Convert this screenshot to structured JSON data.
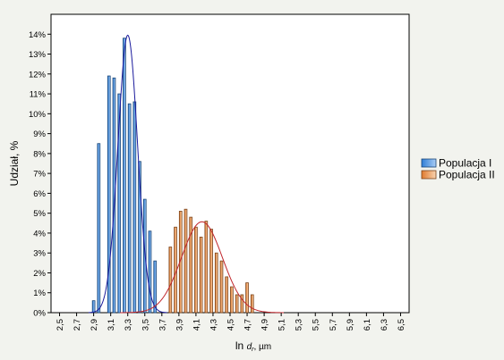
{
  "chart_data": {
    "type": "bar",
    "title": "",
    "xlabel": "ln d_r, µm",
    "xlabel_main": "ln ",
    "xlabel_var": "d",
    "xlabel_sub": "r",
    "xlabel_unit": ", µm",
    "ylabel": "Udział, %",
    "x_ticks": [
      "2,5",
      "2,7",
      "2,9",
      "3,1",
      "3,3",
      "3,5",
      "3,7",
      "3,9",
      "4,1",
      "4,3",
      "4,5",
      "4,7",
      "4,9",
      "5,1",
      "5,3",
      "5,5",
      "5,7",
      "5,9",
      "6,1",
      "6,3",
      "6,5"
    ],
    "y_ticks": [
      "0%",
      "1%",
      "2%",
      "3%",
      "4%",
      "5%",
      "6%",
      "7%",
      "8%",
      "9%",
      "10%",
      "11%",
      "12%",
      "13%",
      "14%"
    ],
    "xlim": [
      2.4,
      6.6
    ],
    "ylim": [
      0,
      15
    ],
    "grid": false,
    "legend_position": "right",
    "bar_width": 0.03,
    "series": [
      {
        "name": "Populacja I",
        "color": "#2e7dd6",
        "fill_light": "#aacdf5",
        "curve_color": "#1a1a9c",
        "curve_mean": 3.3,
        "curve_sd": 0.115,
        "curve_peak": 13.95,
        "x": [
          2.9,
          2.96,
          3.02,
          3.08,
          3.14,
          3.2,
          3.26,
          3.32,
          3.38,
          3.44,
          3.5,
          3.56,
          3.62
        ],
        "values": [
          0.6,
          8.5,
          0.0,
          11.9,
          11.8,
          11.0,
          13.8,
          10.5,
          10.6,
          7.6,
          5.7,
          4.1,
          2.6
        ]
      },
      {
        "name": "Populacja II",
        "color": "#e07a2e",
        "fill_light": "#f9d4b0",
        "curve_color": "#c0262c",
        "curve_mean": 4.17,
        "curve_sd": 0.24,
        "curve_peak": 4.57,
        "x": [
          3.8,
          3.86,
          3.92,
          3.98,
          4.04,
          4.1,
          4.16,
          4.22,
          4.28,
          4.34,
          4.4,
          4.46,
          4.52,
          4.58,
          4.64,
          4.7,
          4.76
        ],
        "values": [
          3.3,
          4.3,
          5.1,
          5.2,
          4.8,
          4.3,
          3.8,
          4.6,
          4.2,
          3.0,
          2.6,
          1.8,
          1.3,
          0.9,
          0.9,
          1.5,
          0.9
        ]
      }
    ]
  }
}
